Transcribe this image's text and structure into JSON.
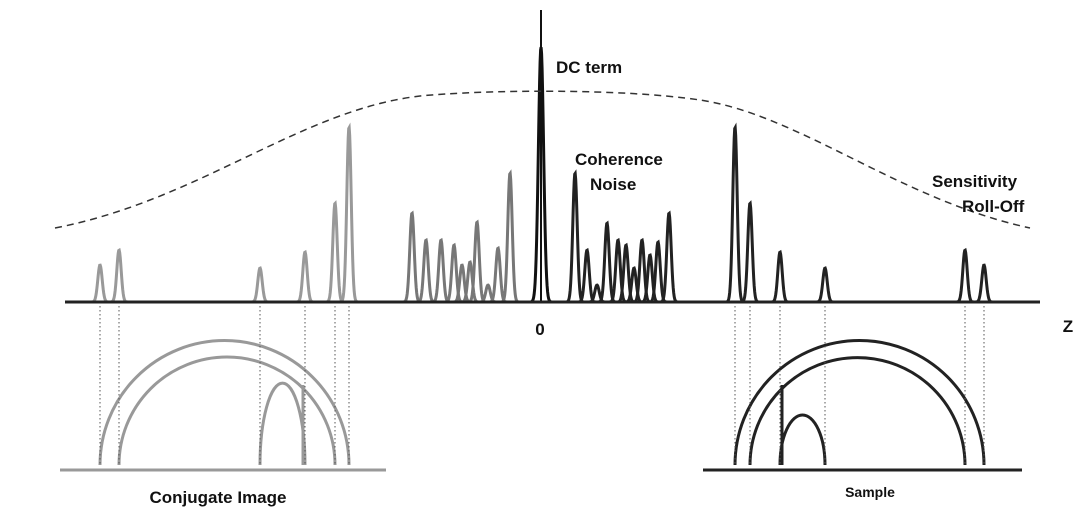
{
  "labels": {
    "dc_term": "DC term",
    "coherence_noise": [
      "Coherence",
      "Noise"
    ],
    "sensitivity_roll_off": [
      "Sensitivity",
      "Roll-Off"
    ],
    "origin": "0",
    "axis": "Z",
    "conjugate_image": "Conjugate Image",
    "sample": "Sample"
  }
}
